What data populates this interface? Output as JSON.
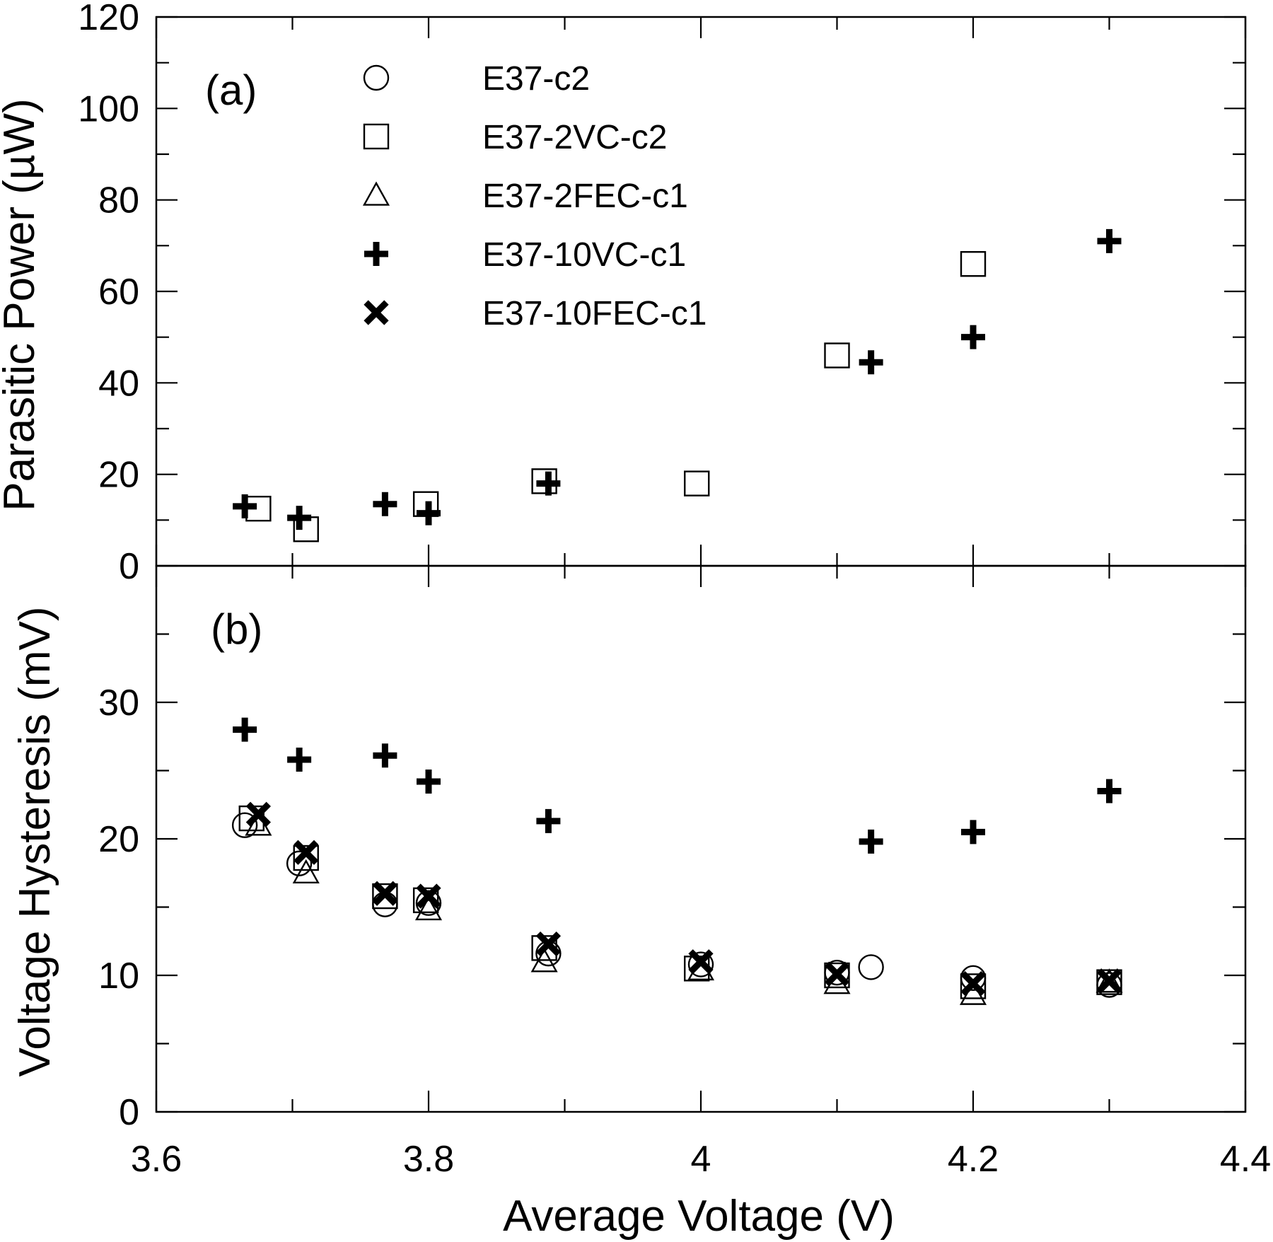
{
  "chart_data": [
    {
      "type": "scatter",
      "panel_label": "(a)",
      "title": "",
      "xlabel": "Average Voltage (V)",
      "ylabel": "Parasitic Power (µW)",
      "xlim": [
        3.6,
        4.4
      ],
      "ylim": [
        0,
        120
      ],
      "x_ticks": [
        "3.6",
        "3.8",
        "4",
        "4.2",
        "4.4"
      ],
      "y_ticks": [
        "0",
        "20",
        "40",
        "60",
        "80",
        "100",
        "120"
      ],
      "legend_position": "top-left",
      "series": [
        {
          "name": "E37-c2",
          "marker": "circle",
          "points": []
        },
        {
          "name": "E37-2VC-c2",
          "marker": "square",
          "points": [
            [
              3.675,
              12.5
            ],
            [
              3.71,
              8.0
            ],
            [
              3.798,
              13.5
            ],
            [
              3.885,
              18.5
            ],
            [
              3.997,
              18.0
            ],
            [
              4.1,
              46.0
            ],
            [
              4.2,
              66.0
            ]
          ]
        },
        {
          "name": "E37-2FEC-c1",
          "marker": "triangle",
          "points": []
        },
        {
          "name": "E37-10VC-c1",
          "marker": "plus",
          "points": [
            [
              3.665,
              13.0
            ],
            [
              3.705,
              10.5
            ],
            [
              3.768,
              13.5
            ],
            [
              3.8,
              11.5
            ],
            [
              3.888,
              18.0
            ],
            [
              4.125,
              44.5
            ],
            [
              4.2,
              50.0
            ],
            [
              4.3,
              71.0
            ]
          ]
        },
        {
          "name": "E37-10FEC-c1",
          "marker": "cross",
          "points": []
        }
      ]
    },
    {
      "type": "scatter",
      "panel_label": "(b)",
      "title": "",
      "xlabel": "Average Voltage (V)",
      "ylabel": "Voltage Hysteresis (mV)",
      "xlim": [
        3.6,
        4.4
      ],
      "ylim": [
        0,
        40
      ],
      "x_ticks": [
        "3.6",
        "3.8",
        "4",
        "4.2",
        "4.4"
      ],
      "y_ticks": [
        "0",
        "10",
        "20",
        "30"
      ],
      "series": [
        {
          "name": "E37-c2",
          "marker": "circle",
          "points": [
            [
              3.665,
              21.0
            ],
            [
              3.705,
              18.2
            ],
            [
              3.768,
              15.2
            ],
            [
              3.8,
              15.3
            ],
            [
              3.888,
              11.6
            ],
            [
              4.0,
              10.8
            ],
            [
              4.1,
              10.2
            ],
            [
              4.125,
              10.6
            ],
            [
              4.2,
              9.8
            ],
            [
              4.3,
              9.3
            ]
          ]
        },
        {
          "name": "E37-2VC-c2",
          "marker": "square",
          "points": [
            [
              3.67,
              21.5
            ],
            [
              3.71,
              18.6
            ],
            [
              3.768,
              15.8
            ],
            [
              3.798,
              15.5
            ],
            [
              3.885,
              12.0
            ],
            [
              3.997,
              10.5
            ],
            [
              4.1,
              10.0
            ],
            [
              4.2,
              9.2
            ],
            [
              4.3,
              9.5
            ]
          ]
        },
        {
          "name": "E37-2FEC-c1",
          "marker": "triangle",
          "points": [
            [
              3.675,
              21.0
            ],
            [
              3.71,
              17.5
            ],
            [
              3.8,
              14.8
            ],
            [
              3.885,
              11.0
            ],
            [
              4.0,
              10.4
            ],
            [
              4.1,
              9.4
            ],
            [
              4.2,
              8.6
            ],
            [
              4.3,
              9.5
            ]
          ]
        },
        {
          "name": "E37-10VC-c1",
          "marker": "plus",
          "points": [
            [
              3.665,
              28.0
            ],
            [
              3.705,
              25.8
            ],
            [
              3.768,
              26.1
            ],
            [
              3.8,
              24.2
            ],
            [
              3.888,
              21.3
            ],
            [
              4.125,
              19.8
            ],
            [
              4.2,
              20.5
            ],
            [
              4.3,
              23.5
            ]
          ]
        },
        {
          "name": "E37-10FEC-c1",
          "marker": "cross",
          "points": [
            [
              3.675,
              21.8
            ],
            [
              3.71,
              19.0
            ],
            [
              3.768,
              16.0
            ],
            [
              3.8,
              15.8
            ],
            [
              3.888,
              12.3
            ],
            [
              4.0,
              11.0
            ],
            [
              4.1,
              10.1
            ],
            [
              4.2,
              9.4
            ],
            [
              4.3,
              9.6
            ]
          ]
        }
      ]
    }
  ]
}
